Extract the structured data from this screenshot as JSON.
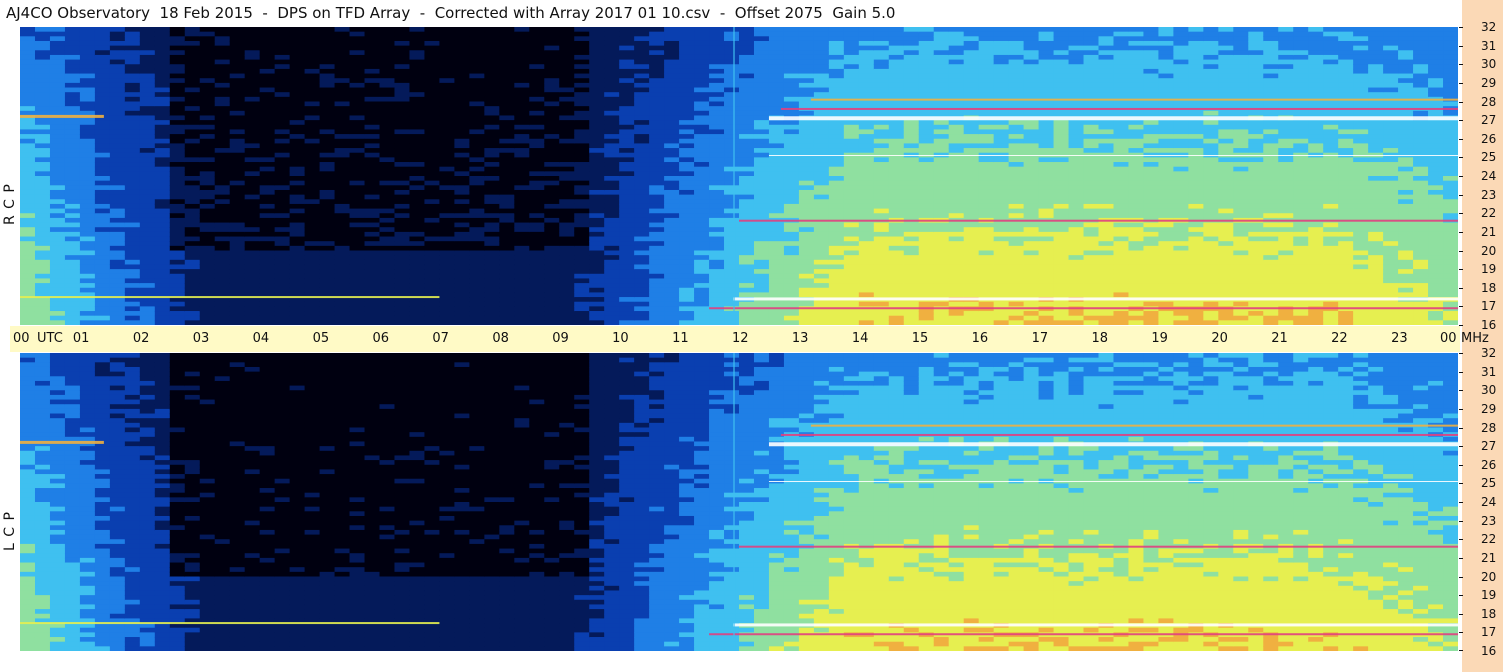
{
  "title": "AJ4CO Observatory  18 Feb 2015  -  DPS on TFD Array  -  Corrected with Array 2017 01 10.csv  -  Offset 2075  Gain 5.0",
  "chart_data": {
    "type": "heatmap",
    "title": "AJ4CO Observatory  18 Feb 2015  -  DPS on TFD Array  -  Corrected with Array 2017 01 10.csv  -  Offset 2075  Gain 5.0",
    "x_axis": {
      "unit": "UTC",
      "ticks": [
        "00",
        "01",
        "02",
        "03",
        "04",
        "05",
        "06",
        "07",
        "08",
        "09",
        "10",
        "11",
        "12",
        "13",
        "14",
        "15",
        "16",
        "17",
        "18",
        "19",
        "20",
        "21",
        "22",
        "23",
        "00"
      ],
      "range": [
        0,
        24
      ]
    },
    "y_axis": {
      "unit": "MHz",
      "ticks": [
        "32",
        "31",
        "30",
        "29",
        "28",
        "27",
        "26",
        "25",
        "24",
        "23",
        "22",
        "21",
        "20",
        "19",
        "18",
        "17",
        "16"
      ],
      "range": [
        16,
        32
      ]
    },
    "panels": [
      {
        "name": "R C P",
        "position": "top"
      },
      {
        "name": "L C P",
        "position": "bottom"
      }
    ],
    "colormap": [
      "#000010",
      "#041a5a",
      "#0a3fb0",
      "#1f7fe6",
      "#3fc0f0",
      "#8fe0a0",
      "#e6ef50",
      "#f0b040",
      "#e04080",
      "#ffffff"
    ]
  },
  "axis_labels": {
    "utc": "UTC",
    "mhz": "MHz"
  },
  "colors": {
    "time_bar": "#fffac6",
    "right_strip": "#fbd9b6"
  }
}
